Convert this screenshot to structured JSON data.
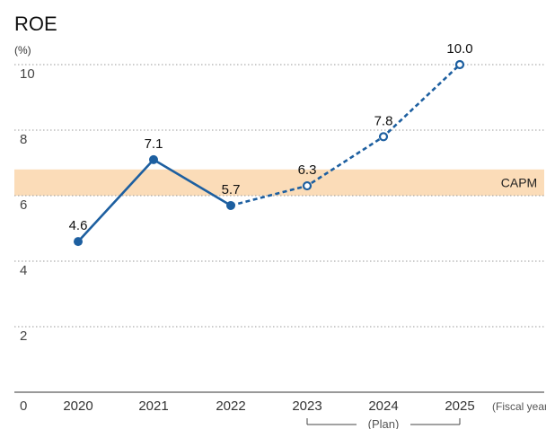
{
  "chart_data": {
    "type": "line",
    "title": "ROE",
    "ylabel": "(%)",
    "xlabel": "(Fiscal year)",
    "ylim": [
      0,
      10
    ],
    "yticks": [
      0,
      2,
      4,
      6,
      8,
      10
    ],
    "grid": true,
    "x": [
      "2020",
      "2021",
      "2022",
      "2023",
      "2024",
      "2025"
    ],
    "series": [
      {
        "values": [
          4.6,
          7.1,
          5.7,
          6.3,
          7.8,
          10.0
        ],
        "labels": [
          "4.6",
          "7.1",
          "5.7",
          "6.3",
          "7.8",
          "10.0"
        ],
        "actual_count": 3,
        "color": "#1d5fa0"
      }
    ],
    "band": {
      "label": "CAPM",
      "from": 6.0,
      "to": 6.8,
      "color": "#fbdcb8"
    },
    "plan_bracket": {
      "label": "(Plan)",
      "from": "2023",
      "to": "2025"
    }
  }
}
